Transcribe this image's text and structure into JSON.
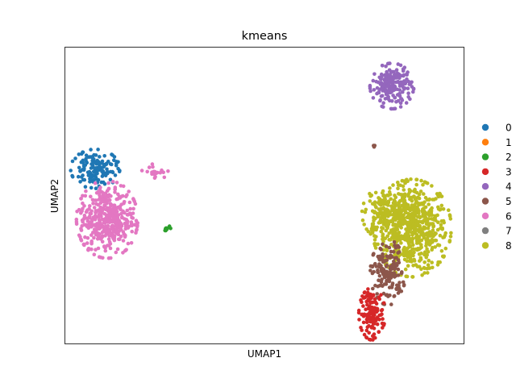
{
  "chart_data": {
    "type": "scatter",
    "title": "kmeans",
    "xlabel": "UMAP1",
    "ylabel": "UMAP2",
    "xlim": [
      0,
      100
    ],
    "ylim": [
      0,
      100
    ],
    "grid": false,
    "axis_ticks": false,
    "legend_placement": "right outside",
    "palette": {
      "0": "#1f77b4",
      "1": "#ff7f0e",
      "2": "#2ca02c",
      "3": "#d62728",
      "4": "#9467bd",
      "5": "#8c564b",
      "6": "#e377c2",
      "7": "#7f7f7f",
      "8": "#bcbd22"
    },
    "legend": [
      {
        "name": "0",
        "color": "#1f77b4"
      },
      {
        "name": "1",
        "color": "#ff7f0e"
      },
      {
        "name": "2",
        "color": "#2ca02c"
      },
      {
        "name": "3",
        "color": "#d62728"
      },
      {
        "name": "4",
        "color": "#9467bd"
      },
      {
        "name": "5",
        "color": "#8c564b"
      },
      {
        "name": "6",
        "color": "#e377c2"
      },
      {
        "name": "7",
        "color": "#7f7f7f"
      },
      {
        "name": "8",
        "color": "#bcbd22"
      }
    ],
    "clusters": [
      {
        "name": "8",
        "cx": 87,
        "cy": 39,
        "sx": 4.5,
        "sy": 7.5,
        "n": 650
      },
      {
        "name": "8",
        "cx": 80,
        "cy": 44,
        "sx": 2.5,
        "sy": 4,
        "n": 150
      },
      {
        "name": "5",
        "cx": 81,
        "cy": 24,
        "sx": 2,
        "sy": 5,
        "n": 160
      },
      {
        "name": "5",
        "cx": 77.5,
        "cy": 66,
        "sx": 0.2,
        "sy": 1,
        "n": 3
      },
      {
        "name": "3",
        "cx": 77,
        "cy": 10,
        "sx": 1.5,
        "sy": 4,
        "n": 140
      },
      {
        "name": "4",
        "cx": 82,
        "cy": 87,
        "sx": 2.5,
        "sy": 3.5,
        "n": 200
      },
      {
        "name": "0",
        "cx": 7.5,
        "cy": 59,
        "sx": 2.8,
        "sy": 3,
        "n": 140
      },
      {
        "name": "6",
        "cx": 10.5,
        "cy": 42,
        "sx": 3.5,
        "sy": 6,
        "n": 420
      },
      {
        "name": "6",
        "cx": 22.5,
        "cy": 58,
        "sx": 1.5,
        "sy": 1.2,
        "n": 20
      },
      {
        "name": "2",
        "cx": 25.5,
        "cy": 39,
        "sx": 0.6,
        "sy": 0.4,
        "n": 10
      }
    ]
  }
}
